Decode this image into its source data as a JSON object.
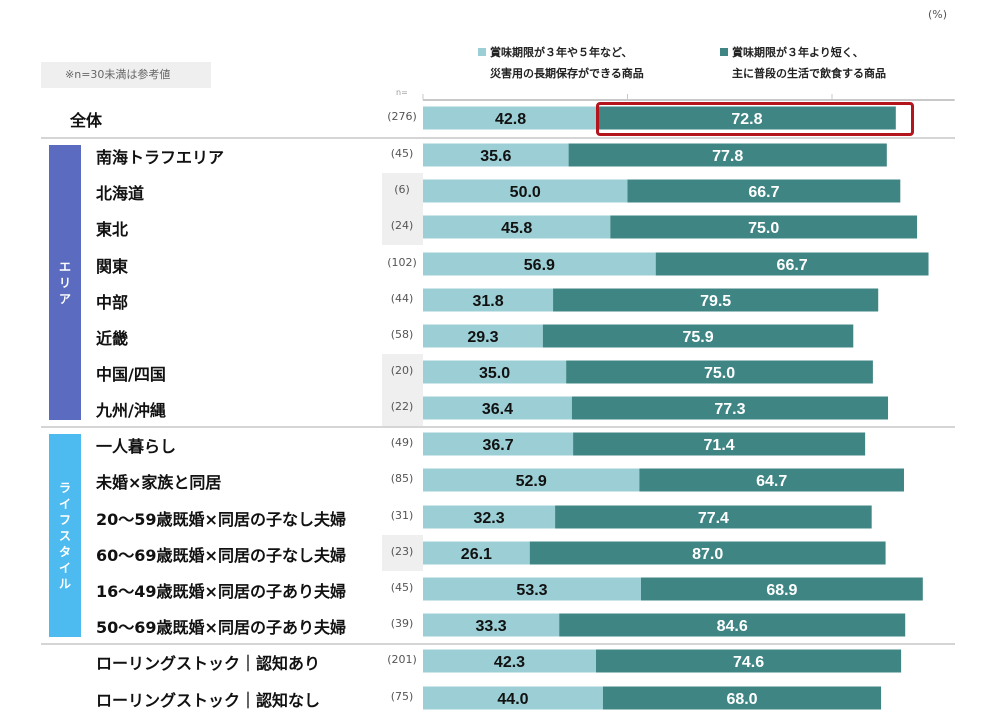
{
  "unit_label": "(%)",
  "note": "※n=30未満は参考値",
  "n_header": "n=",
  "legend": [
    {
      "line1": "賞味期限が３年や５年など、",
      "line2": "災害用の長期保存ができる商品",
      "color": "#9bcfd5"
    },
    {
      "line1": "賞味期限が３年より短く、",
      "line2": "主に普段の生活で飲食する商品",
      "color": "#3f8584"
    }
  ],
  "groups": [
    {
      "name": "エリア",
      "chars": [
        "エ",
        "リ",
        "ア"
      ],
      "color": "#5b6bbf"
    },
    {
      "name": "ライフスタイル",
      "chars": [
        "ラ",
        "イ",
        "フ",
        "ス",
        "タ",
        "イ",
        "ル"
      ],
      "color": "#4dbbef"
    }
  ],
  "highlight_color": "#b4141c",
  "chart_data": {
    "type": "bar",
    "orientation": "horizontal",
    "stacked": true,
    "unit": "%",
    "xlim": [
      0,
      130
    ],
    "ticks": [
      0,
      50,
      100
    ],
    "series": [
      {
        "name": "賞味期限が３年や５年など、災害用の長期保存ができる商品",
        "color": "#9bcfd5"
      },
      {
        "name": "賞味期限が３年より短く、主に普段の生活で飲食する商品",
        "color": "#3f8584"
      }
    ],
    "rows": [
      {
        "label": "全体",
        "n": "(276)",
        "group": null,
        "small_n": false,
        "values": [
          42.8,
          72.8
        ],
        "highlight": true
      },
      {
        "label": "南海トラフエリア",
        "n": "(45)",
        "group": "エリア",
        "small_n": false,
        "values": [
          35.6,
          77.8
        ]
      },
      {
        "label": "北海道",
        "n": "(6)",
        "group": "エリア",
        "small_n": true,
        "values": [
          50.0,
          66.7
        ]
      },
      {
        "label": "東北",
        "n": "(24)",
        "group": "エリア",
        "small_n": true,
        "values": [
          45.8,
          75.0
        ]
      },
      {
        "label": "関東",
        "n": "(102)",
        "group": "エリア",
        "small_n": false,
        "values": [
          56.9,
          66.7
        ]
      },
      {
        "label": "中部",
        "n": "(44)",
        "group": "エリア",
        "small_n": false,
        "values": [
          31.8,
          79.5
        ]
      },
      {
        "label": "近畿",
        "n": "(58)",
        "group": "エリア",
        "small_n": false,
        "values": [
          29.3,
          75.9
        ]
      },
      {
        "label": "中国/四国",
        "n": "(20)",
        "group": "エリア",
        "small_n": true,
        "values": [
          35.0,
          75.0
        ]
      },
      {
        "label": "九州/沖縄",
        "n": "(22)",
        "group": "エリア",
        "small_n": true,
        "values": [
          36.4,
          77.3
        ]
      },
      {
        "label": "一人暮らし",
        "n": "(49)",
        "group": "ライフスタイル",
        "small_n": false,
        "values": [
          36.7,
          71.4
        ]
      },
      {
        "label": "未婚×家族と同居",
        "n": "(85)",
        "group": "ライフスタイル",
        "small_n": false,
        "values": [
          52.9,
          64.7
        ]
      },
      {
        "label": "20～59歳既婚×同居の子なし夫婦",
        "n": "(31)",
        "group": "ライフスタイル",
        "small_n": false,
        "values": [
          32.3,
          77.4
        ]
      },
      {
        "label": "60～69歳既婚×同居の子なし夫婦",
        "n": "(23)",
        "group": "ライフスタイル",
        "small_n": true,
        "values": [
          26.1,
          87.0
        ]
      },
      {
        "label": "16～49歳既婚×同居の子あり夫婦",
        "n": "(45)",
        "group": "ライフスタイル",
        "small_n": false,
        "values": [
          53.3,
          68.9
        ]
      },
      {
        "label": "50～69歳既婚×同居の子あり夫婦",
        "n": "(39)",
        "group": "ライフスタイル",
        "small_n": false,
        "values": [
          33.3,
          84.6
        ]
      },
      {
        "label": "ローリングストック｜認知あり",
        "n": "(201)",
        "group": null,
        "small_n": false,
        "values": [
          42.3,
          74.6
        ]
      },
      {
        "label": "ローリングストック｜認知なし",
        "n": "(75)",
        "group": null,
        "small_n": false,
        "values": [
          44.0,
          68.0
        ]
      }
    ]
  }
}
